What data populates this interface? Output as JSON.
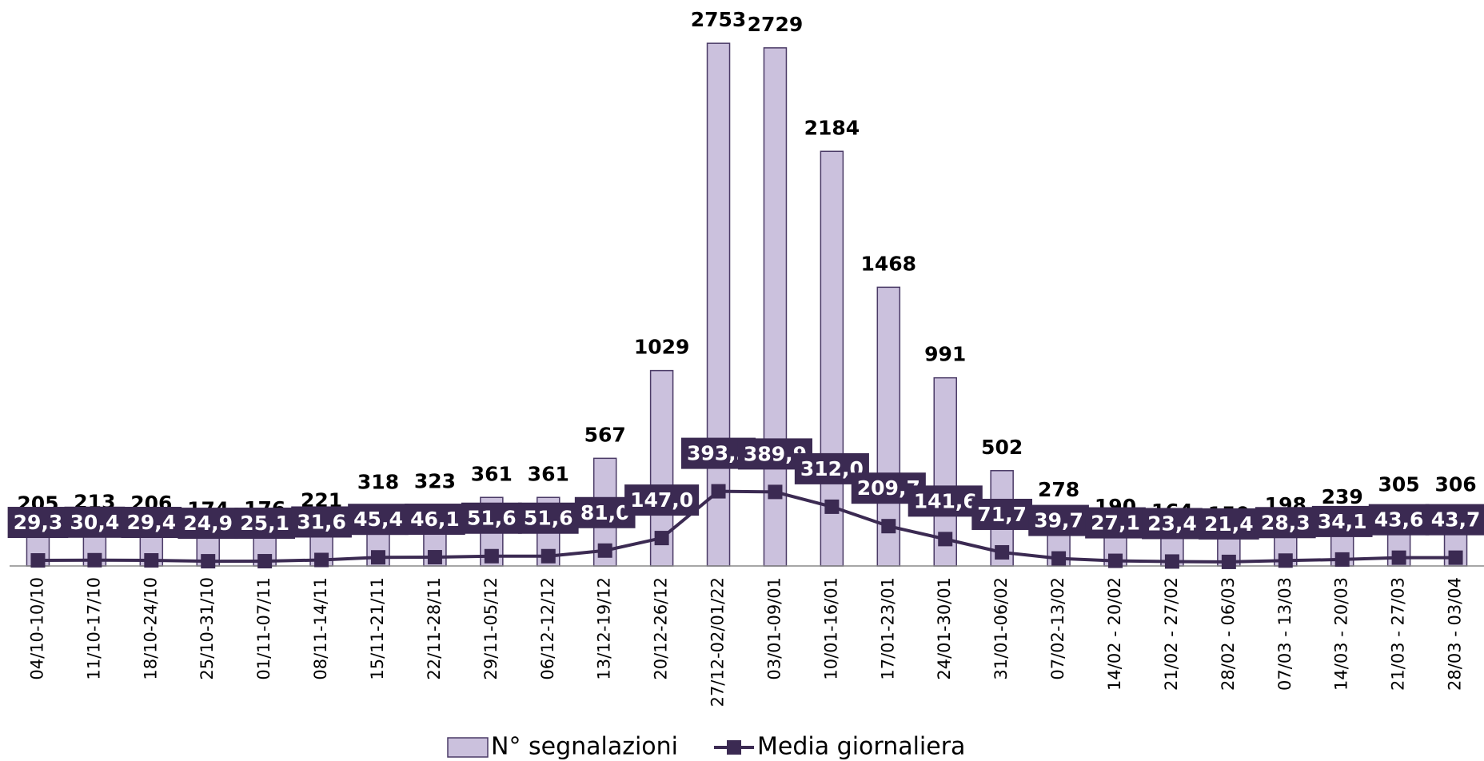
{
  "chart_data": {
    "type": "bar",
    "categories": [
      "04/10-10/10",
      "11/10-17/10",
      "18/10-24/10",
      "25/10-31/10",
      "01/11-07/11",
      "08/11-14/11",
      "15/11-21/11",
      "22/11-28/11",
      "29/11-05/12",
      "06/12-12/12",
      "13/12-19/12",
      "20/12-26/12",
      "27/12-02/01/22",
      "03/01-09/01",
      "10/01-16/01",
      "17/01-23/01",
      "24/01-30/01",
      "31/01-06/02",
      "07/02-13/02",
      "14/02 - 20/02",
      "21/02 - 27/02",
      "28/02 - 06/03",
      "07/03 - 13/03",
      "14/03 - 20/03",
      "21/03 - 27/03",
      "28/03 - 03/04"
    ],
    "series": [
      {
        "name": "N° segnalazioni",
        "type": "bar",
        "color": "#cbc1dd",
        "values": [
          205,
          213,
          206,
          174,
          176,
          221,
          318,
          323,
          361,
          361,
          567,
          1029,
          2753,
          2729,
          2184,
          1468,
          991,
          502,
          278,
          190,
          164,
          150,
          198,
          239,
          305,
          306
        ]
      },
      {
        "name": "Media giornaliera",
        "type": "line",
        "color": "#3b2a52",
        "values": [
          29.3,
          30.4,
          29.4,
          24.9,
          25.1,
          31.6,
          45.4,
          46.1,
          51.6,
          51.6,
          81.0,
          147.0,
          393.3,
          389.9,
          312.0,
          209.7,
          141.6,
          71.7,
          39.7,
          27.1,
          23.4,
          21.4,
          28.3,
          34.1,
          43.6,
          43.7
        ],
        "value_labels": [
          "29,3",
          "30,4",
          "29,4",
          "24,9",
          "25,1",
          "31,6",
          "45,4",
          "46,1",
          "51,6",
          "51,6",
          "81,0",
          "147,0",
          "393,3",
          "389,9",
          "312,0",
          "209,7",
          "141,6",
          "71,7",
          "39,7",
          "27,1",
          "23,4",
          "21,4",
          "28,3",
          "34,1",
          "43,6",
          "43,7"
        ]
      }
    ],
    "ylim": [
      0,
      2800
    ]
  }
}
